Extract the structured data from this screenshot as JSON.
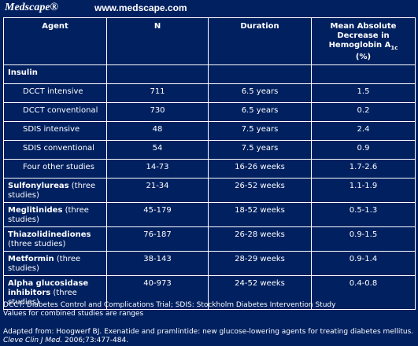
{
  "header": {
    "logo": "Medscape®",
    "url": "www.medscape.com"
  },
  "table": {
    "columns": [
      "Agent",
      "N",
      "Duration",
      {
        "text": "Mean Absolute Decrease in Hemoglobin A",
        "sub": "1c",
        "suffix": "(%)"
      }
    ],
    "insulin": {
      "label": "Insulin",
      "rows": [
        {
          "agent": "DCCT intensive",
          "n": "711",
          "duration": "6.5 years",
          "decrease": "1.5"
        },
        {
          "agent": "DCCT conventional",
          "n": "730",
          "duration": "6.5 years",
          "decrease": "0.2"
        },
        {
          "agent": "SDIS intensive",
          "n": "48",
          "duration": "7.5 years",
          "decrease": "2.4"
        },
        {
          "agent": "SDIS conventional",
          "n": "54",
          "duration": "7.5 years",
          "decrease": "0.9"
        },
        {
          "agent": "Four other studies",
          "n": "14-73",
          "duration": "16-26 weeks",
          "decrease": "1.7-2.6"
        }
      ]
    },
    "agents": [
      {
        "name": "Sulfonylureas",
        "note": "(three studies)",
        "n": "21-34",
        "duration": "26-52 weeks",
        "decrease": "1.1-1.9"
      },
      {
        "name": "Meglitinides",
        "note": "(three studies)",
        "n": "45-179",
        "duration": "18-52 weeks",
        "decrease": "0.5-1.3"
      },
      {
        "name": "Thiazolidinediones",
        "note": "(three studies)",
        "n": "76-187",
        "duration": "26-28 weeks",
        "decrease": "0.9-1.5"
      },
      {
        "name": "Metformin",
        "note": "(three studies)",
        "n": "38-143",
        "duration": "28-29 weeks",
        "decrease": "0.9-1.4"
      },
      {
        "name": "Alpha glucosidase inhibitors",
        "note": "(three studies)",
        "n": "40-973",
        "duration": "24-52 weeks",
        "decrease": "0.4-0.8"
      }
    ]
  },
  "footnotes": [
    "DCCT: Diabetes Control and Complications Trial; SDIS: Stockholm Diabetes Intervention Study",
    "Values for combined studies are ranges"
  ],
  "source": {
    "prefix": "Adapted from: Hoogwerf BJ. Exenatide and pramlintide: new glucose-lowering agents for treating diabetes mellitus.",
    "journal": "Cleve Clin J Med.",
    "citation": "2006;73:477-484."
  }
}
